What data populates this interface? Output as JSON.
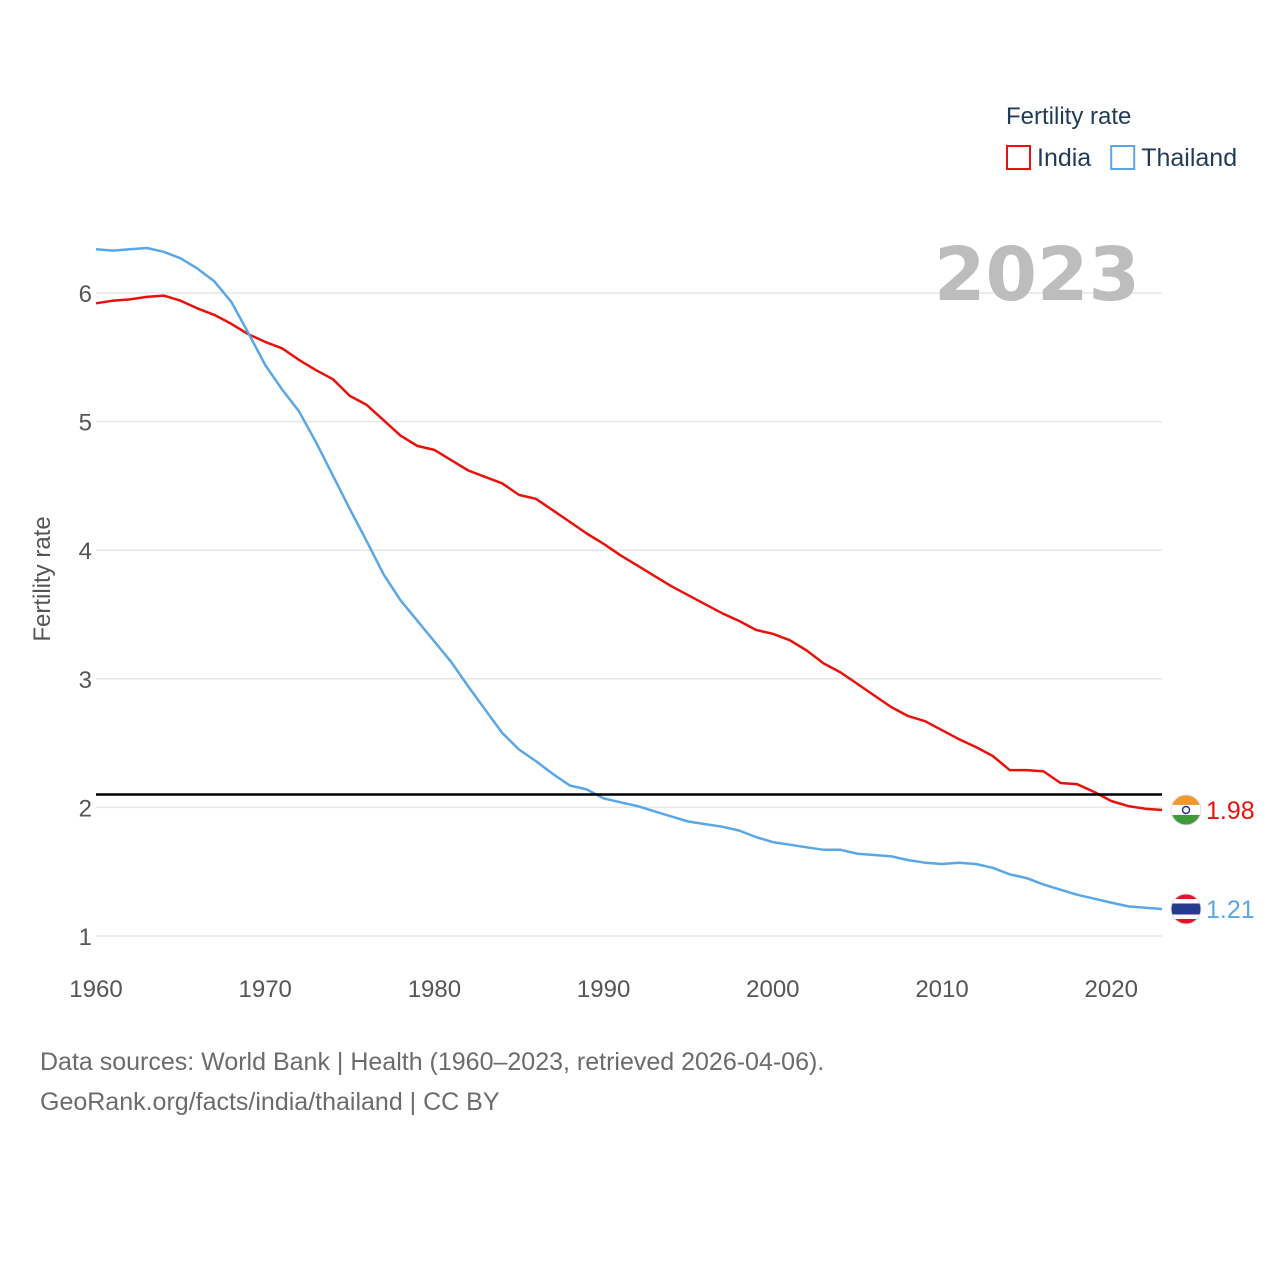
{
  "chart_data": {
    "type": "line",
    "title": "",
    "current_year_label": "2023",
    "xlabel": "",
    "ylabel": "Fertility rate",
    "xlim": [
      1960,
      2023
    ],
    "ylim": [
      0.75,
      6.6
    ],
    "xticks": [
      1960,
      1970,
      1980,
      1990,
      2000,
      2010,
      2020
    ],
    "yticks": [
      1,
      2,
      3,
      4,
      5,
      6
    ],
    "grid": true,
    "legend": {
      "title": "Fertility rate",
      "position": "top-right"
    },
    "reference_line": {
      "y": 2.1,
      "color": "#000000"
    },
    "x": [
      1960,
      1961,
      1962,
      1963,
      1964,
      1965,
      1966,
      1967,
      1968,
      1969,
      1970,
      1971,
      1972,
      1973,
      1974,
      1975,
      1976,
      1977,
      1978,
      1979,
      1980,
      1981,
      1982,
      1983,
      1984,
      1985,
      1986,
      1987,
      1988,
      1989,
      1990,
      1991,
      1992,
      1993,
      1994,
      1995,
      1996,
      1997,
      1998,
      1999,
      2000,
      2001,
      2002,
      2003,
      2004,
      2005,
      2006,
      2007,
      2008,
      2009,
      2010,
      2011,
      2012,
      2013,
      2014,
      2015,
      2016,
      2017,
      2018,
      2019,
      2020,
      2021,
      2022,
      2023
    ],
    "series": [
      {
        "name": "India",
        "color": "#e8120c",
        "end_label": "1.98",
        "flag": "india-flag",
        "values": [
          5.92,
          5.94,
          5.95,
          5.97,
          5.98,
          5.94,
          5.88,
          5.83,
          5.76,
          5.68,
          5.62,
          5.57,
          5.48,
          5.4,
          5.33,
          5.2,
          5.13,
          5.01,
          4.89,
          4.81,
          4.78,
          4.7,
          4.62,
          4.57,
          4.52,
          4.43,
          4.4,
          4.31,
          4.22,
          4.13,
          4.05,
          3.96,
          3.88,
          3.8,
          3.72,
          3.65,
          3.58,
          3.51,
          3.45,
          3.38,
          3.35,
          3.3,
          3.22,
          3.12,
          3.05,
          2.96,
          2.87,
          2.78,
          2.71,
          2.67,
          2.6,
          2.53,
          2.47,
          2.4,
          2.29,
          2.29,
          2.28,
          2.19,
          2.18,
          2.12,
          2.05,
          2.01,
          1.99,
          1.98
        ]
      },
      {
        "name": "Thailand",
        "color": "#5aa7e6",
        "end_label": "1.21",
        "flag": "thailand-flag",
        "values": [
          6.34,
          6.33,
          6.34,
          6.35,
          6.32,
          6.27,
          6.19,
          6.09,
          5.93,
          5.69,
          5.44,
          5.25,
          5.08,
          4.84,
          4.58,
          4.32,
          4.07,
          3.81,
          3.61,
          3.45,
          3.29,
          3.13,
          2.94,
          2.76,
          2.58,
          2.45,
          2.36,
          2.26,
          2.17,
          2.14,
          2.07,
          2.04,
          2.01,
          1.97,
          1.93,
          1.89,
          1.87,
          1.85,
          1.82,
          1.77,
          1.73,
          1.71,
          1.69,
          1.67,
          1.67,
          1.64,
          1.63,
          1.62,
          1.59,
          1.57,
          1.56,
          1.57,
          1.56,
          1.53,
          1.48,
          1.45,
          1.4,
          1.36,
          1.32,
          1.29,
          1.26,
          1.23,
          1.22,
          1.21
        ]
      }
    ]
  },
  "footer": {
    "line1": "Data sources: World Bank | Health (1960–2023, retrieved 2026-04-06).",
    "line2": "GeoRank.org/facts/india/thailand | CC BY"
  }
}
